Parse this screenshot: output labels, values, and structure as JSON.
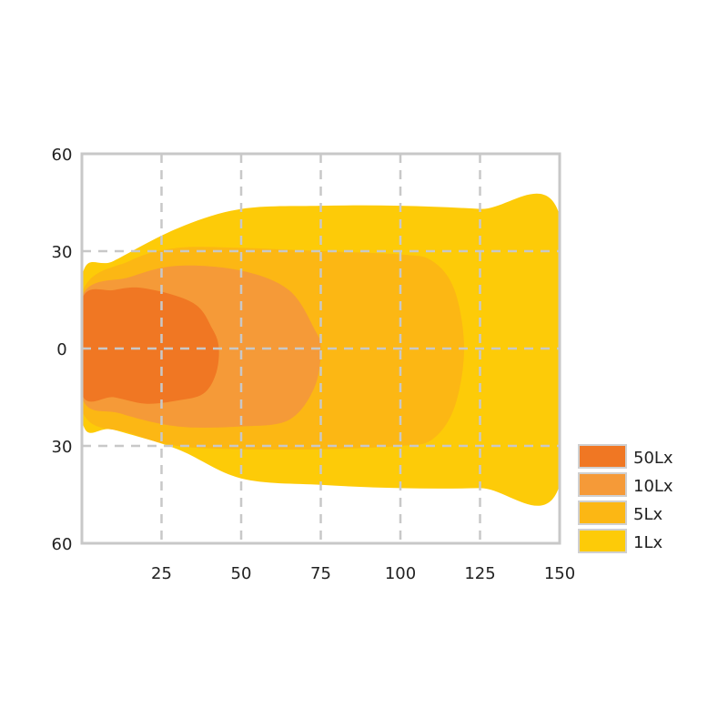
{
  "chart_data": {
    "type": "area",
    "title": "",
    "xlabel": "",
    "ylabel": "",
    "xlim": [
      0,
      150
    ],
    "ylim": [
      -60,
      60
    ],
    "x_ticks": [
      {
        "value": 25,
        "label": "25"
      },
      {
        "value": 50,
        "label": "50"
      },
      {
        "value": 75,
        "label": "75"
      },
      {
        "value": 100,
        "label": "100"
      },
      {
        "value": 125,
        "label": "125"
      },
      {
        "value": 150,
        "label": "150"
      }
    ],
    "y_ticks": [
      {
        "value": 60,
        "label": "60"
      },
      {
        "value": 30,
        "label": "30"
      },
      {
        "value": 0,
        "label": "0"
      },
      {
        "value": -30,
        "label": "30"
      },
      {
        "value": -60,
        "label": "60"
      }
    ],
    "grid": true,
    "legend_position": "bottom-right",
    "series": [
      {
        "name": "1Lx",
        "color": "#fdcb08",
        "outline": [
          [
            0,
            22
          ],
          [
            10,
            27
          ],
          [
            30,
            37
          ],
          [
            50,
            43
          ],
          [
            75,
            44
          ],
          [
            100,
            44
          ],
          [
            125,
            43
          ],
          [
            150,
            41
          ],
          [
            150,
            -42
          ],
          [
            125,
            -43
          ],
          [
            100,
            -43
          ],
          [
            75,
            -42
          ],
          [
            50,
            -40
          ],
          [
            30,
            -31
          ],
          [
            10,
            -25
          ],
          [
            0,
            -22
          ]
        ]
      },
      {
        "name": "5Lx",
        "color": "#fcb714",
        "outline": [
          [
            0,
            17
          ],
          [
            15,
            27
          ],
          [
            30,
            31
          ],
          [
            50,
            31
          ],
          [
            75,
            30
          ],
          [
            100,
            29
          ],
          [
            110,
            27
          ],
          [
            117,
            18
          ],
          [
            120,
            0
          ],
          [
            117,
            -18
          ],
          [
            110,
            -28
          ],
          [
            100,
            -30
          ],
          [
            75,
            -31
          ],
          [
            50,
            -31
          ],
          [
            30,
            -30
          ],
          [
            15,
            -26
          ],
          [
            0,
            -19
          ]
        ]
      },
      {
        "name": "10Lx",
        "color": "#f59a38",
        "outline": [
          [
            0,
            16
          ],
          [
            15,
            22
          ],
          [
            30,
            25.5
          ],
          [
            50,
            24
          ],
          [
            65,
            18
          ],
          [
            73,
            6
          ],
          [
            75,
            0
          ],
          [
            73,
            -12
          ],
          [
            65,
            -22
          ],
          [
            50,
            -24
          ],
          [
            30,
            -24
          ],
          [
            12,
            -20
          ],
          [
            0,
            -15
          ]
        ]
      },
      {
        "name": "50Lx",
        "color": "#f07723",
        "outline": [
          [
            0,
            15
          ],
          [
            10,
            18
          ],
          [
            20,
            18.5
          ],
          [
            35,
            14
          ],
          [
            41,
            6
          ],
          [
            43,
            0
          ],
          [
            42,
            -8
          ],
          [
            38,
            -14
          ],
          [
            30,
            -16
          ],
          [
            20,
            -17
          ],
          [
            10,
            -15
          ],
          [
            0,
            -14
          ]
        ]
      }
    ]
  }
}
